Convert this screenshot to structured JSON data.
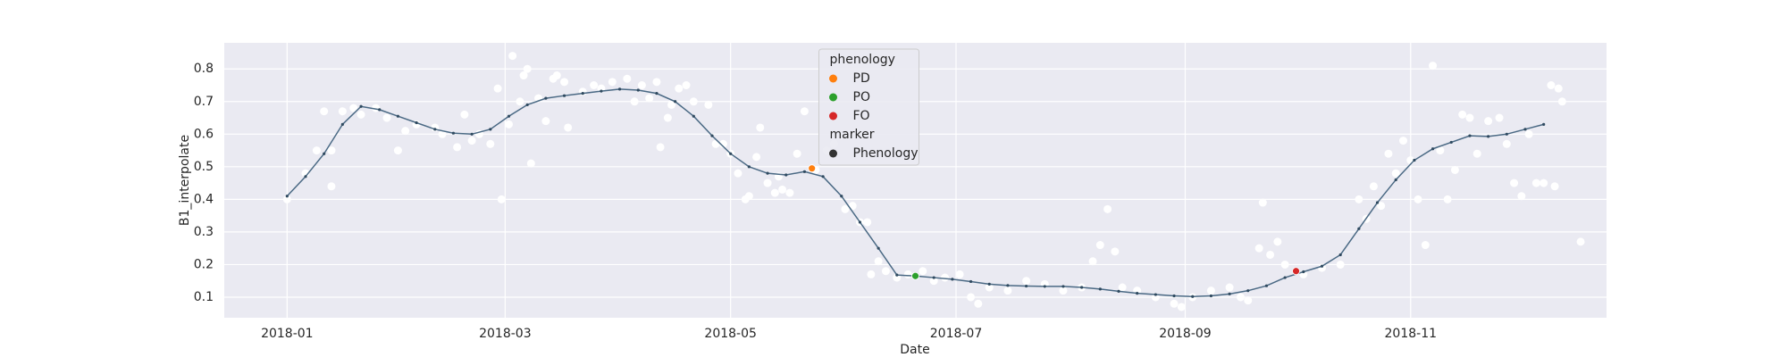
{
  "chart_data": {
    "type": "scatter",
    "x_label": "Date",
    "y_label": "B1_interpolate",
    "xlim": [
      -17,
      357
    ],
    "ylim": [
      0.037,
      0.88
    ],
    "xticks": [
      {
        "value": 0,
        "label": "2018-01"
      },
      {
        "value": 59,
        "label": "2018-03"
      },
      {
        "value": 120,
        "label": "2018-05"
      },
      {
        "value": 181,
        "label": "2018-07"
      },
      {
        "value": 243,
        "label": "2018-09"
      },
      {
        "value": 304,
        "label": "2018-11"
      }
    ],
    "yticks": [
      0.1,
      0.2,
      0.3,
      0.4,
      0.5,
      0.6,
      0.7,
      0.8
    ],
    "grid": true,
    "legend_title": "phenology",
    "legend_location": "upper center",
    "series": [
      {
        "type": "scatter",
        "color": "#ffffff",
        "x": [
          0,
          5,
          8,
          10,
          12,
          12,
          15,
          18,
          20,
          24,
          27,
          30,
          32,
          35,
          40,
          42,
          46,
          48,
          50,
          52,
          55,
          57,
          58,
          60,
          61,
          63,
          64,
          65,
          66,
          68,
          70,
          72,
          73,
          75,
          76,
          80,
          83,
          85,
          88,
          92,
          94,
          96,
          98,
          100,
          101,
          103,
          104,
          106,
          108,
          110,
          114,
          116,
          118,
          120,
          122,
          124,
          125,
          127,
          128,
          130,
          132,
          133,
          134,
          136,
          138,
          140,
          143,
          146,
          148,
          151,
          153,
          155,
          157,
          158,
          160,
          162,
          165,
          168,
          172,
          175,
          178,
          182,
          185,
          187,
          190,
          195,
          200,
          205,
          210,
          215,
          218,
          220,
          222,
          224,
          226,
          230,
          235,
          240,
          242,
          245,
          250,
          255,
          258,
          260,
          263,
          264,
          266,
          268,
          270,
          275,
          280,
          285,
          290,
          292,
          294,
          296,
          298,
          300,
          302,
          304,
          306,
          308,
          310,
          312,
          314,
          316,
          318,
          320,
          322,
          325,
          328,
          330,
          332,
          334,
          336,
          338,
          340,
          342,
          344,
          345,
          343,
          350
        ],
        "values": [
          0.4,
          0.48,
          0.55,
          0.67,
          0.55,
          0.44,
          0.67,
          0.68,
          0.66,
          0.68,
          0.65,
          0.55,
          0.61,
          0.63,
          0.62,
          0.6,
          0.56,
          0.66,
          0.58,
          0.6,
          0.57,
          0.74,
          0.4,
          0.63,
          0.84,
          0.7,
          0.78,
          0.8,
          0.51,
          0.71,
          0.64,
          0.77,
          0.78,
          0.76,
          0.62,
          0.73,
          0.75,
          0.74,
          0.76,
          0.77,
          0.7,
          0.75,
          0.71,
          0.76,
          0.56,
          0.65,
          0.69,
          0.74,
          0.75,
          0.7,
          0.69,
          0.57,
          0.57,
          0.54,
          0.48,
          0.4,
          0.41,
          0.53,
          0.62,
          0.45,
          0.42,
          0.47,
          0.43,
          0.42,
          0.54,
          0.67,
          0.49,
          0.55,
          0.57,
          0.37,
          0.38,
          0.33,
          0.33,
          0.17,
          0.21,
          0.18,
          0.16,
          0.17,
          0.18,
          0.15,
          0.16,
          0.17,
          0.1,
          0.08,
          0.13,
          0.12,
          0.15,
          0.14,
          0.12,
          0.13,
          0.21,
          0.26,
          0.37,
          0.24,
          0.13,
          0.12,
          0.1,
          0.08,
          0.07,
          0.1,
          0.12,
          0.13,
          0.1,
          0.09,
          0.25,
          0.39,
          0.23,
          0.27,
          0.2,
          0.17,
          0.19,
          0.2,
          0.4,
          0.34,
          0.44,
          0.38,
          0.54,
          0.48,
          0.58,
          0.52,
          0.4,
          0.26,
          0.81,
          0.55,
          0.4,
          0.49,
          0.66,
          0.65,
          0.54,
          0.64,
          0.65,
          0.57,
          0.45,
          0.41,
          0.6,
          0.45,
          0.45,
          0.75,
          0.74,
          0.7,
          0.44,
          0.27
        ]
      },
      {
        "type": "line",
        "color": "#4a6984",
        "x": [
          0,
          5,
          10,
          15,
          20,
          25,
          30,
          35,
          40,
          45,
          50,
          55,
          60,
          65,
          70,
          75,
          80,
          85,
          90,
          95,
          100,
          105,
          110,
          115,
          120,
          125,
          130,
          135,
          140,
          145,
          150,
          155,
          160,
          165,
          170,
          175,
          180,
          185,
          190,
          195,
          200,
          205,
          210,
          215,
          220,
          225,
          230,
          235,
          240,
          245,
          250,
          255,
          260,
          265,
          270,
          275,
          280,
          285,
          290,
          295,
          300,
          305,
          310,
          315,
          320,
          325,
          330,
          335,
          340
        ],
        "values": [
          0.41,
          0.47,
          0.54,
          0.63,
          0.685,
          0.675,
          0.655,
          0.635,
          0.615,
          0.603,
          0.6,
          0.615,
          0.655,
          0.69,
          0.71,
          0.718,
          0.725,
          0.732,
          0.738,
          0.735,
          0.725,
          0.7,
          0.655,
          0.595,
          0.54,
          0.5,
          0.48,
          0.475,
          0.485,
          0.47,
          0.41,
          0.33,
          0.25,
          0.168,
          0.165,
          0.16,
          0.155,
          0.148,
          0.14,
          0.136,
          0.134,
          0.133,
          0.133,
          0.13,
          0.125,
          0.118,
          0.112,
          0.108,
          0.104,
          0.102,
          0.104,
          0.11,
          0.12,
          0.135,
          0.16,
          0.178,
          0.195,
          0.23,
          0.31,
          0.39,
          0.46,
          0.52,
          0.555,
          0.575,
          0.595,
          0.593,
          0.6,
          0.615,
          0.63
        ]
      },
      {
        "type": "scatter",
        "name": "PD",
        "color": "#ff7f0e",
        "x": [
          142
        ],
        "values": [
          0.495
        ]
      },
      {
        "type": "scatter",
        "name": "PO",
        "color": "#2ca02c",
        "x": [
          170
        ],
        "values": [
          0.165
        ]
      },
      {
        "type": "scatter",
        "name": "FO",
        "color": "#d62728",
        "x": [
          273
        ],
        "values": [
          0.18
        ]
      }
    ],
    "marker_legend": {
      "title": "marker",
      "name": "Phenology",
      "color": "#333333"
    }
  }
}
